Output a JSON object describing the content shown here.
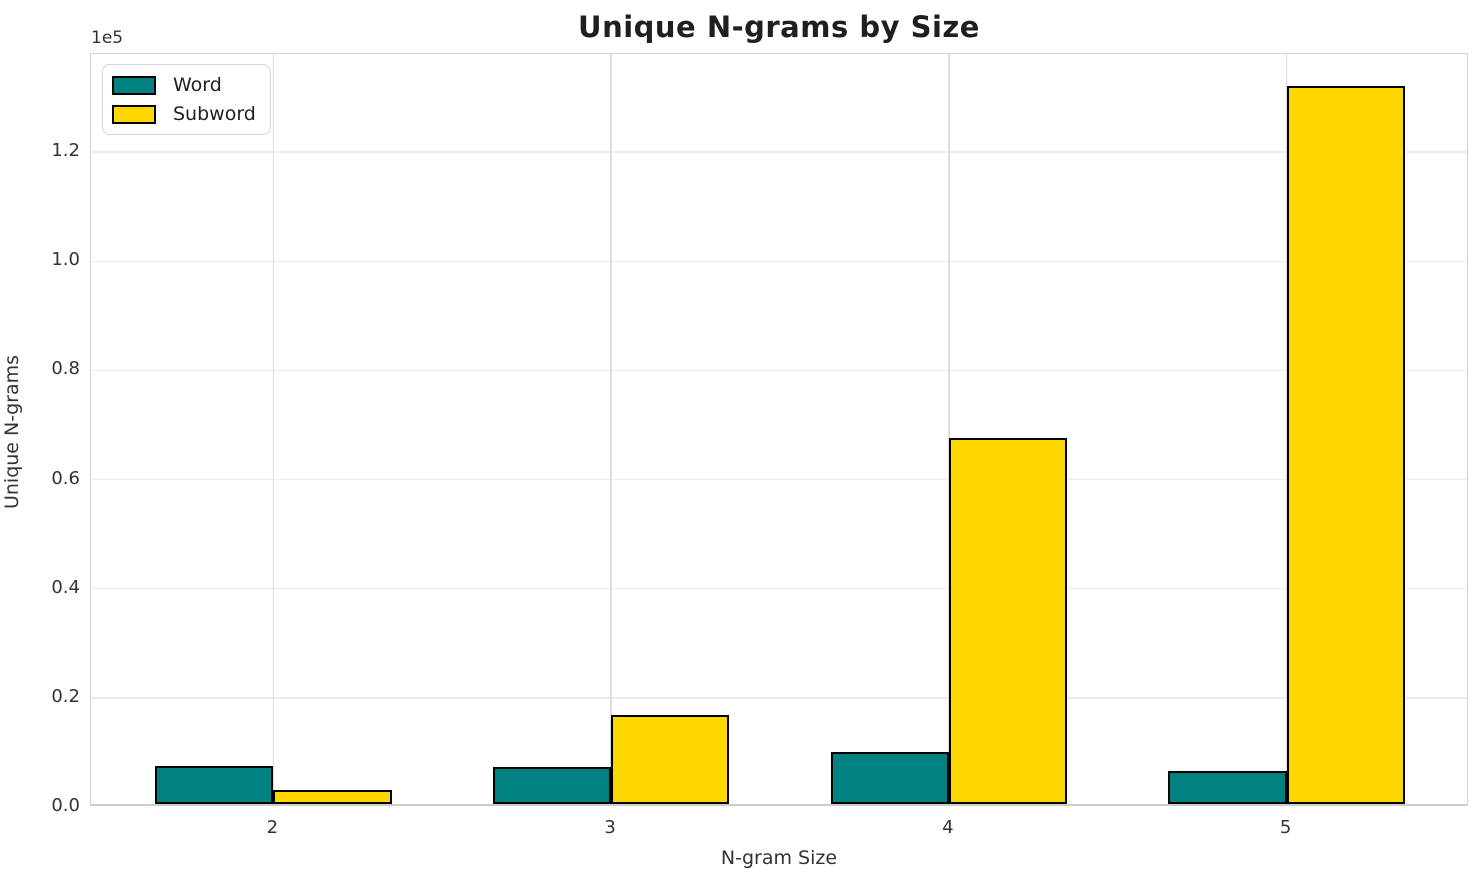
{
  "chart_data": {
    "type": "bar",
    "title": "Unique N-grams by Size",
    "xlabel": "N-gram Size",
    "ylabel": "Unique N-grams",
    "offset_text": "1e5",
    "categories": [
      "2",
      "3",
      "4",
      "5"
    ],
    "series": [
      {
        "name": "Word",
        "color": "#008080",
        "values": [
          7000,
          6800,
          9500,
          6000
        ]
      },
      {
        "name": "Subword",
        "color": "#FFD700",
        "values": [
          2500,
          16300,
          67000,
          131500
        ]
      }
    ],
    "bar_edge_color": "#000000",
    "bar_width_units": 0.35,
    "ylim": [
      0,
      138000
    ],
    "yticks": [
      0,
      20000,
      40000,
      60000,
      80000,
      100000,
      120000
    ],
    "ytick_labels": [
      "0.0",
      "0.2",
      "0.4",
      "0.6",
      "0.8",
      "1.0",
      "1.2"
    ],
    "grid": true,
    "legend_position": "upper left",
    "text_color": "#333333",
    "grid_color": "#e8e8e8"
  }
}
